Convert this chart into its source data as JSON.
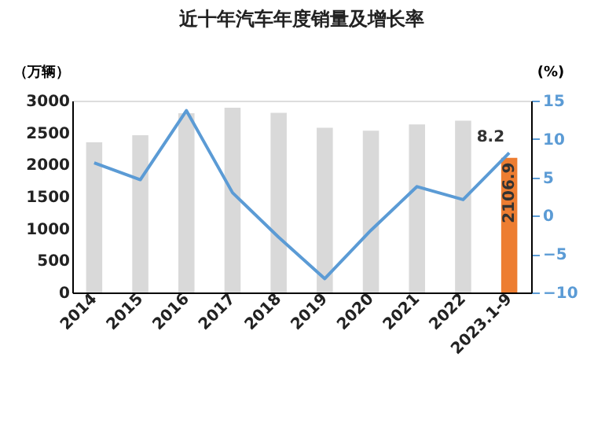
{
  "chart_data": {
    "type": "bar",
    "title": "近十年汽车年度销量及增长率",
    "ylabel": "（万辆）",
    "y2label": "(%)",
    "categories": [
      "2014",
      "2015",
      "2016",
      "2017",
      "2018",
      "2019",
      "2020",
      "2021",
      "2022",
      "2023.1-9"
    ],
    "series": [
      {
        "colors": [
          "#d9d9d9",
          "#d9d9d9",
          "#d9d9d9",
          "#d9d9d9",
          "#d9d9d9",
          "#d9d9d9",
          "#d9d9d9",
          "#d9d9d9",
          "#d9d9d9",
          "#ed7d31"
        ],
        "values": [
          2349,
          2460,
          2803,
          2888,
          2808,
          2577,
          2531,
          2627,
          2686,
          2106.9
        ],
        "value_labels": [
          null,
          null,
          null,
          null,
          null,
          null,
          null,
          null,
          null,
          "2106.9"
        ]
      },
      {
        "type": "line",
        "axis": "y2",
        "color": "#5b9bd5",
        "values": [
          6.9,
          4.7,
          13.7,
          3.0,
          -2.8,
          -8.2,
          -1.9,
          3.8,
          2.1,
          8.2
        ],
        "value_labels": [
          null,
          null,
          null,
          null,
          null,
          null,
          null,
          null,
          null,
          "8.2"
        ]
      }
    ],
    "ylim": [
      0,
      3000
    ],
    "yticks": [
      0,
      500,
      1000,
      1500,
      2000,
      2500,
      3000
    ],
    "y2lim": [
      -10,
      15
    ],
    "y2ticks": [
      -10,
      -5,
      0,
      5,
      10,
      15
    ],
    "grid": false,
    "marker": "none",
    "line_style": "solid"
  }
}
